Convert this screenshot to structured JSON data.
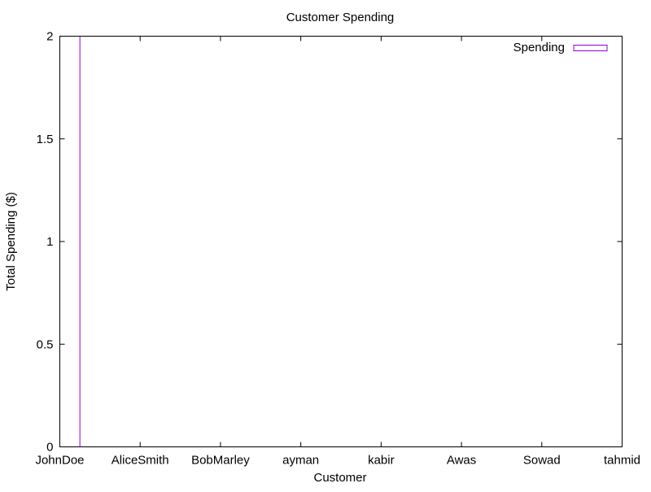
{
  "chart_data": {
    "type": "bar",
    "title": "Customer Spending",
    "xlabel": "Customer",
    "ylabel": "Total Spending ($)",
    "categories": [
      "JohnDoe",
      "AliceSmith",
      "BobMarley",
      "ayman",
      "kabir",
      "Awas",
      "Sowad",
      "tahmid"
    ],
    "series": [
      {
        "name": "Spending",
        "color": "#9400d3",
        "values": [
          2,
          0,
          0,
          0,
          0,
          0,
          0,
          0
        ]
      }
    ],
    "ylim": [
      0,
      2
    ],
    "yticks": [
      "0",
      "0.5",
      "1",
      "1.5",
      "2"
    ],
    "ytick_values": [
      0,
      0.5,
      1,
      1.5,
      2
    ],
    "grid": false,
    "legend": "top-right"
  }
}
